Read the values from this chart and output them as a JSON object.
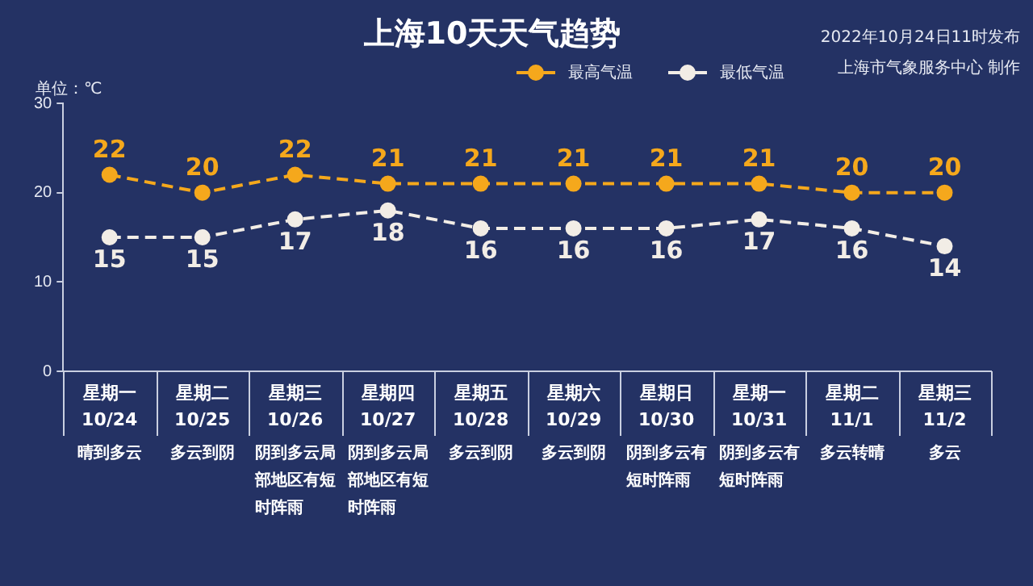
{
  "chart_data": {
    "type": "line",
    "title": "上海10天天气趋势",
    "subtitle": "2022年10月24日11时发布",
    "ylabel": "单位：℃",
    "categories": [
      "星期一\n10/24",
      "星期二\n10/25",
      "星期三\n10/26",
      "星期四\n10/27",
      "星期五\n10/28",
      "星期六\n10/29",
      "星期日\n10/30",
      "星期一\n10/31",
      "星期二\n11/1",
      "星期三\n11/2"
    ],
    "series": [
      {
        "name": "最高气温",
        "color": "#f5a81c",
        "values": [
          22,
          20,
          22,
          21,
          21,
          21,
          21,
          21,
          20,
          20
        ]
      },
      {
        "name": "最低气温",
        "color": "#f2ede6",
        "values": [
          15,
          15,
          17,
          18,
          16,
          16,
          16,
          17,
          16,
          14
        ]
      }
    ],
    "ylim": [
      0,
      30
    ],
    "yticks": [
      0,
      10,
      20,
      30
    ],
    "grid": false,
    "legend": "top right",
    "marker": "circle",
    "line_style": "dashed",
    "data_labels": true,
    "annotations": [
      "晴到多云",
      "多云到阴",
      "阴到多云局部地区有短时阵雨",
      "阴到多云局部地区有短时阵雨",
      "多云到阴",
      "多云到阴",
      "阴到多云有短时阵雨",
      "阴到多云有短时阵雨",
      "多云转晴",
      "多云",
      "上海市气象服务中心 制作"
    ]
  }
}
